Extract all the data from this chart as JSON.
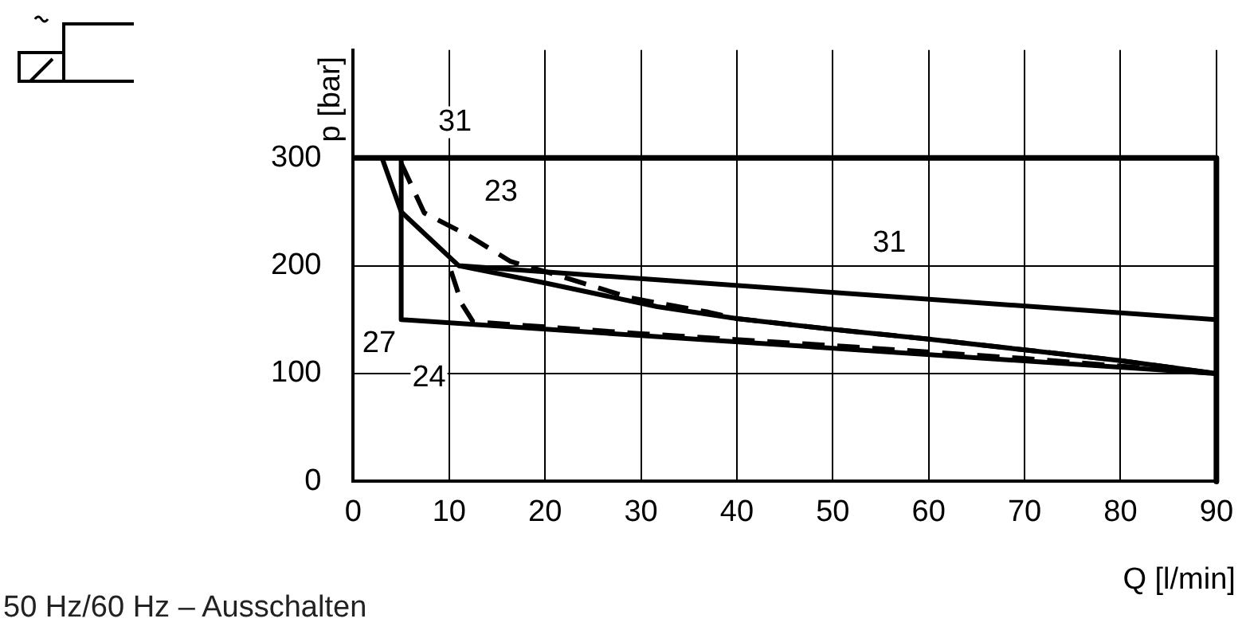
{
  "chart_data": {
    "type": "line",
    "xlabel": "Q [l/min]",
    "ylabel": "p [bar]",
    "xlim": [
      0,
      90
    ],
    "xticks": [
      0,
      10,
      20,
      30,
      40,
      50,
      60,
      70,
      80,
      90
    ],
    "ylim": [
      0,
      400
    ],
    "yticks": [
      0,
      100,
      200,
      300
    ],
    "grid": true,
    "legend": false,
    "marker": "none",
    "series": [
      {
        "color": "#000000",
        "x": [
          0,
          90,
          90
        ],
        "values": [
          300,
          300,
          0
        ]
      },
      {
        "color": "#000000",
        "x": [
          5,
          5,
          90
        ],
        "values": [
          300,
          150,
          100
        ]
      },
      {
        "color": "#000000",
        "x": [
          3,
          5,
          11,
          90
        ],
        "values": [
          300,
          250,
          200,
          150
        ]
      },
      {
        "color": "#000000",
        "x": [
          11,
          20,
          31.7,
          40,
          50,
          60,
          70,
          80,
          90
        ],
        "values": [
          200,
          184,
          162,
          151,
          141,
          132,
          122,
          112,
          100
        ]
      },
      {
        "color": "#000000",
        "line_style": "dashed",
        "x": [
          5,
          7.4,
          12.2,
          16.4,
          21,
          29,
          37,
          40,
          50,
          60,
          70,
          80,
          90
        ],
        "values": [
          295,
          249,
          227,
          204,
          192,
          170,
          157,
          151,
          141,
          132,
          122,
          112,
          100
        ]
      },
      {
        "color": "#000000",
        "line_style": "dashed",
        "x": [
          10.2,
          11.3,
          12.5,
          30,
          50,
          70,
          90
        ],
        "values": [
          195,
          165,
          148,
          137,
          126,
          114,
          100
        ]
      }
    ],
    "annotations": [
      {
        "text": "31",
        "x": 10.6,
        "y": 333
      },
      {
        "text": "23",
        "x": 15.4,
        "y": 268
      },
      {
        "text": "27",
        "x": 2.7,
        "y": 128
      },
      {
        "text": "24",
        "x": 7.9,
        "y": 96
      },
      {
        "text": "31",
        "x": 55.9,
        "y": 221
      },
      "50 Hz/60 Hz – Ausschalten"
    ]
  }
}
